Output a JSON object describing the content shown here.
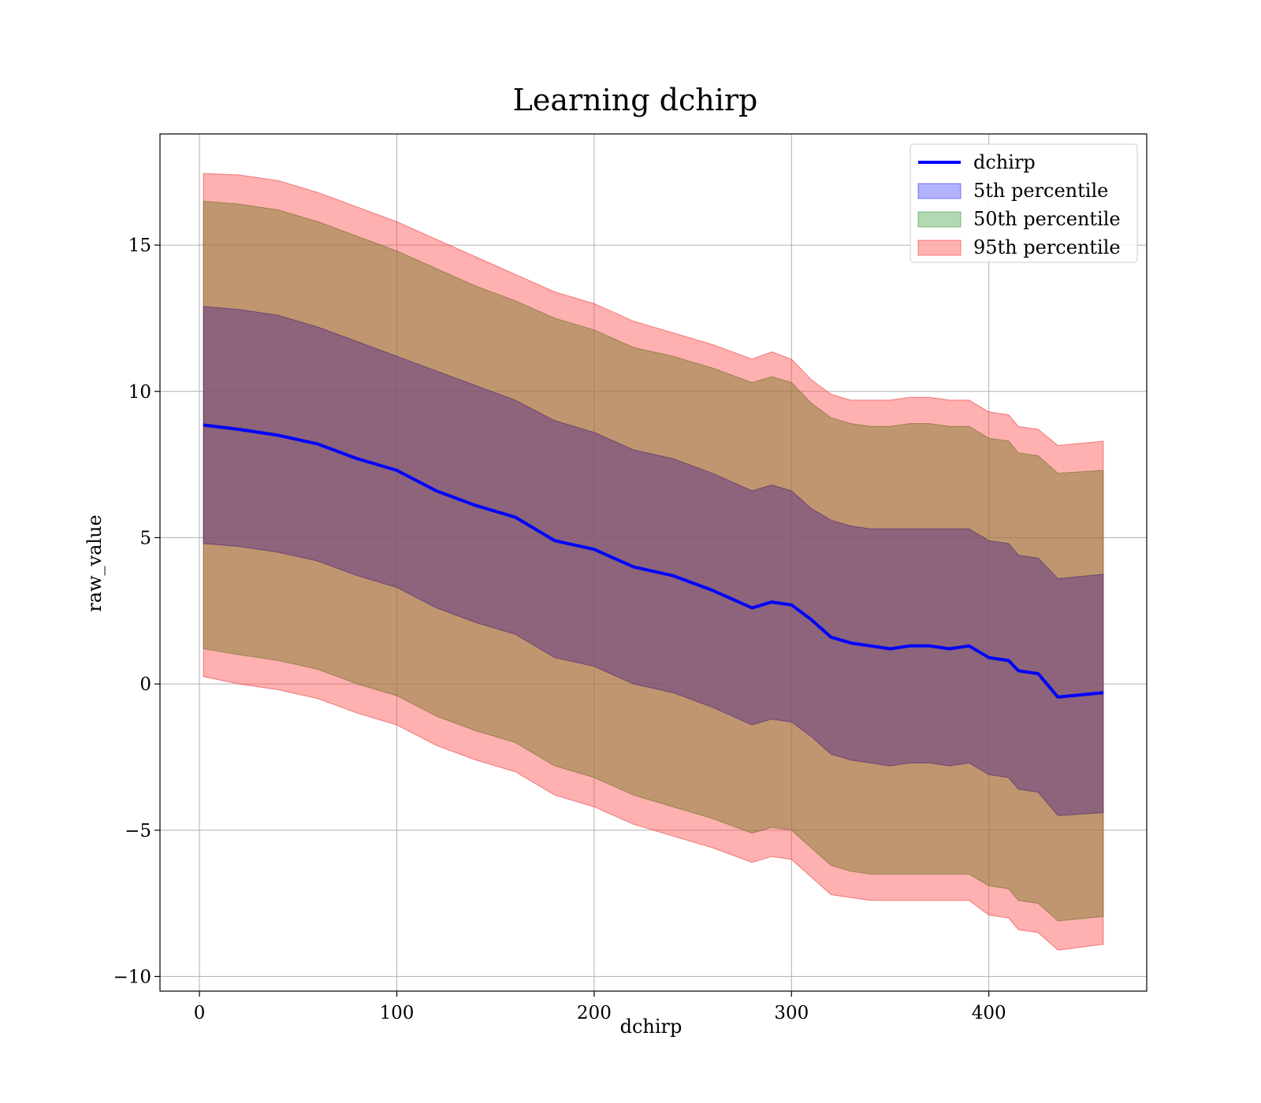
{
  "chart_data": {
    "type": "area",
    "title": "Learning dchirp",
    "xlabel": "dchirp",
    "ylabel": "raw_value",
    "xlim": [
      -20,
      480
    ],
    "ylim": [
      -10.5,
      18.8
    ],
    "xticks": [
      0,
      100,
      200,
      300,
      400
    ],
    "xtick_labels": [
      "0",
      "100",
      "200",
      "300",
      "400"
    ],
    "yticks": [
      -10,
      -5,
      0,
      5,
      10,
      15
    ],
    "ytick_labels": [
      "−10",
      "−5",
      "0",
      "5",
      "10",
      "15"
    ],
    "grid": true,
    "legend_position": "top-right",
    "x": [
      2,
      20,
      40,
      60,
      80,
      100,
      120,
      140,
      160,
      180,
      200,
      220,
      240,
      260,
      280,
      290,
      300,
      310,
      320,
      330,
      340,
      350,
      360,
      370,
      380,
      390,
      400,
      410,
      415,
      425,
      435,
      458
    ],
    "series": [
      {
        "name": "dchirp",
        "kind": "line",
        "color": "#0000ff",
        "values": [
          8.85,
          8.7,
          8.5,
          8.2,
          7.7,
          7.3,
          6.6,
          6.1,
          5.7,
          4.9,
          4.6,
          4.0,
          3.7,
          3.2,
          2.6,
          2.8,
          2.7,
          2.2,
          1.6,
          1.4,
          1.3,
          1.2,
          1.3,
          1.3,
          1.2,
          1.3,
          0.9,
          0.8,
          0.45,
          0.35,
          -0.45,
          -0.3
        ]
      },
      {
        "name": "5th percentile",
        "kind": "band",
        "color": "#0000ff",
        "upper": [
          12.9,
          12.8,
          12.6,
          12.2,
          11.7,
          11.2,
          10.7,
          10.2,
          9.7,
          9.0,
          8.6,
          8.0,
          7.7,
          7.2,
          6.6,
          6.8,
          6.6,
          6.0,
          5.6,
          5.4,
          5.3,
          5.3,
          5.3,
          5.3,
          5.3,
          5.3,
          4.9,
          4.8,
          4.4,
          4.3,
          3.6,
          3.75
        ],
        "lower": [
          4.8,
          4.7,
          4.5,
          4.2,
          3.7,
          3.3,
          2.6,
          2.1,
          1.7,
          0.9,
          0.6,
          0.0,
          -0.3,
          -0.8,
          -1.4,
          -1.2,
          -1.3,
          -1.8,
          -2.4,
          -2.6,
          -2.7,
          -2.8,
          -2.7,
          -2.7,
          -2.8,
          -2.7,
          -3.1,
          -3.2,
          -3.6,
          -3.7,
          -4.5,
          -4.4
        ]
      },
      {
        "name": "50th percentile",
        "kind": "band",
        "color": "#008000",
        "upper": [
          16.5,
          16.4,
          16.2,
          15.8,
          15.3,
          14.8,
          14.2,
          13.6,
          13.1,
          12.5,
          12.1,
          11.5,
          11.2,
          10.8,
          10.3,
          10.5,
          10.3,
          9.6,
          9.1,
          8.9,
          8.8,
          8.8,
          8.9,
          8.9,
          8.8,
          8.8,
          8.4,
          8.3,
          7.9,
          7.8,
          7.2,
          7.3
        ],
        "lower": [
          1.2,
          1.0,
          0.8,
          0.5,
          0.0,
          -0.4,
          -1.1,
          -1.6,
          -2.0,
          -2.8,
          -3.2,
          -3.8,
          -4.2,
          -4.6,
          -5.1,
          -4.9,
          -5.0,
          -5.6,
          -6.2,
          -6.4,
          -6.5,
          -6.5,
          -6.5,
          -6.5,
          -6.5,
          -6.5,
          -6.9,
          -7.0,
          -7.4,
          -7.5,
          -8.1,
          -7.95
        ]
      },
      {
        "name": "95th percentile",
        "kind": "band",
        "color": "#ff0000",
        "upper": [
          17.45,
          17.4,
          17.2,
          16.8,
          16.3,
          15.8,
          15.2,
          14.6,
          14.0,
          13.4,
          13.0,
          12.4,
          12.0,
          11.6,
          11.1,
          11.35,
          11.1,
          10.4,
          9.9,
          9.7,
          9.7,
          9.7,
          9.8,
          9.8,
          9.7,
          9.7,
          9.3,
          9.2,
          8.8,
          8.7,
          8.15,
          8.3
        ],
        "lower": [
          0.25,
          0.0,
          -0.2,
          -0.5,
          -1.0,
          -1.4,
          -2.1,
          -2.6,
          -3.0,
          -3.8,
          -4.2,
          -4.8,
          -5.2,
          -5.6,
          -6.1,
          -5.9,
          -6.0,
          -6.6,
          -7.2,
          -7.3,
          -7.4,
          -7.4,
          -7.4,
          -7.4,
          -7.4,
          -7.4,
          -7.9,
          -8.0,
          -8.4,
          -8.5,
          -9.1,
          -8.9
        ]
      }
    ]
  }
}
